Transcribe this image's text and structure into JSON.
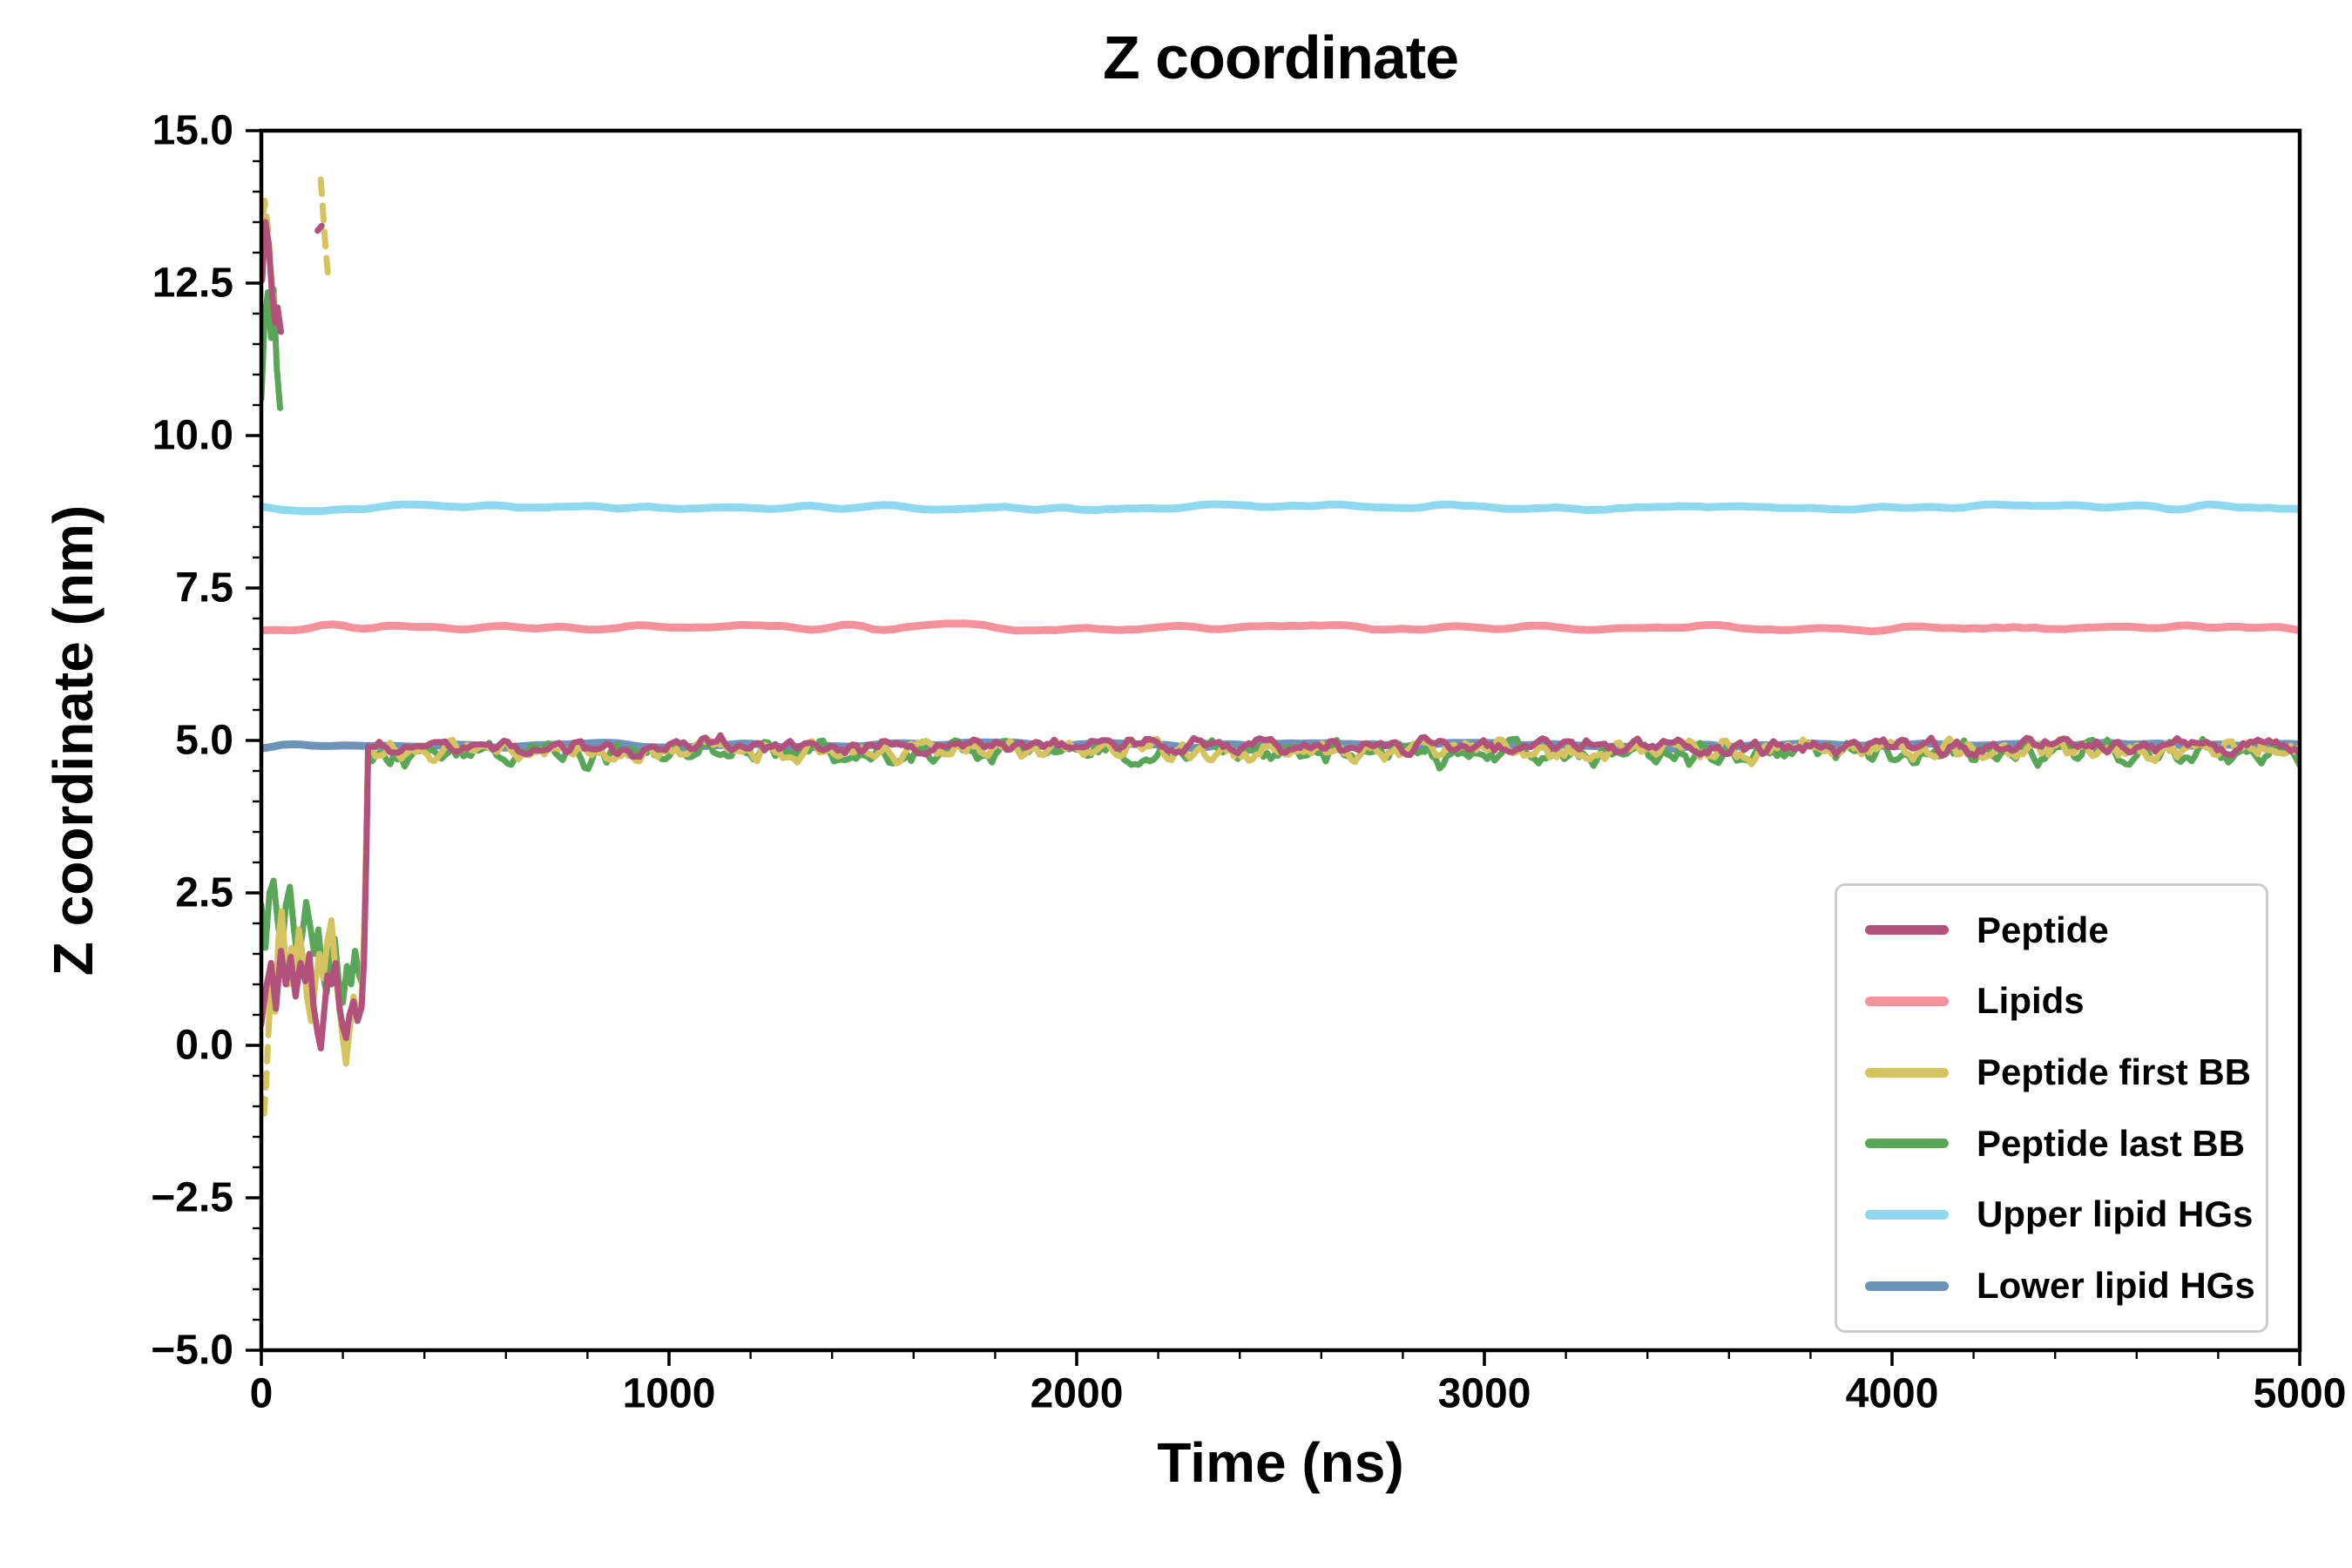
{
  "figure": {
    "background": "#ffffff"
  },
  "chart_data": {
    "type": "line",
    "title": "Z coordinate",
    "xlabel": "Time (ns)",
    "ylabel": "Z coordinate (nm)",
    "xlim": [
      0,
      5000
    ],
    "ylim": [
      -5.0,
      15.0
    ],
    "xticks": [
      0,
      1000,
      2000,
      3000,
      4000,
      5000
    ],
    "xtick_labels": [
      "0",
      "1000",
      "2000",
      "3000",
      "4000",
      "5000"
    ],
    "yticks": [
      -5.0,
      -2.5,
      0.0,
      2.5,
      5.0,
      7.5,
      10.0,
      12.5,
      15.0
    ],
    "ytick_labels": [
      "−5.0",
      "−2.5",
      "0.0",
      "2.5",
      "5.0",
      "7.5",
      "10.0",
      "12.5",
      "15.0"
    ],
    "xminor_step": 200,
    "yminor_step": 0.5,
    "grid": false,
    "legend": {
      "position": "lower right",
      "entries": [
        {
          "label": "Peptide",
          "color": "#b1517c"
        },
        {
          "label": "Lipids",
          "color": "#f4919b"
        },
        {
          "label": "Peptide first BB",
          "color": "#d4c35e"
        },
        {
          "label": "Peptide last BB",
          "color": "#59a659"
        },
        {
          "label": "Upper lipid HGs",
          "color": "#8ed8f0"
        },
        {
          "label": "Lower lipid HGs",
          "color": "#6e93b9"
        }
      ]
    },
    "series": [
      {
        "name": "Lower lipid HGs",
        "color": "#6e93b9",
        "linewidth": 9,
        "segments": [
          {
            "type": "flat",
            "style": "solid",
            "x0": 0,
            "x1": 5000,
            "y": 4.92,
            "noise": 0.04,
            "step": 25,
            "smooth": 2
          }
        ]
      },
      {
        "name": "Upper lipid HGs",
        "color": "#8ed8f0",
        "linewidth": 9,
        "segments": [
          {
            "type": "flat",
            "style": "solid",
            "x0": 0,
            "x1": 5000,
            "y": 8.82,
            "noise": 0.05,
            "step": 25,
            "smooth": 2
          }
        ]
      },
      {
        "name": "Lipids",
        "color": "#f4919b",
        "linewidth": 9,
        "segments": [
          {
            "type": "flat",
            "style": "solid",
            "x0": 0,
            "x1": 5000,
            "y": 6.85,
            "noise": 0.05,
            "step": 25,
            "smooth": 2
          }
        ]
      },
      {
        "name": "Peptide last BB",
        "color": "#59a659",
        "linewidth": 7,
        "segments": [
          {
            "type": "points",
            "style": "solid",
            "points": [
              [
                0,
                10.6
              ],
              [
                8,
                11.9
              ],
              [
                16,
                12.35
              ],
              [
                24,
                11.6
              ],
              [
                30,
                12.4
              ],
              [
                38,
                11.1
              ],
              [
                46,
                10.45
              ]
            ]
          },
          {
            "type": "points",
            "style": "solid",
            "points": [
              [
                0,
                2.3
              ],
              [
                10,
                1.6
              ],
              [
                20,
                2.5
              ],
              [
                30,
                2.7
              ],
              [
                40,
                2.05
              ],
              [
                50,
                1.5
              ],
              [
                60,
                2.3
              ],
              [
                70,
                2.6
              ],
              [
                80,
                1.9
              ],
              [
                90,
                1.35
              ],
              [
                100,
                1.8
              ],
              [
                110,
                2.35
              ],
              [
                120,
                1.95
              ],
              [
                130,
                1.5
              ],
              [
                140,
                1.9
              ],
              [
                150,
                1.2
              ],
              [
                160,
                0.85
              ],
              [
                170,
                1.4
              ],
              [
                180,
                1.75
              ],
              [
                190,
                1.05
              ],
              [
                200,
                0.7
              ],
              [
                210,
                1.3
              ],
              [
                220,
                1.0
              ],
              [
                230,
                1.55
              ],
              [
                240,
                1.15
              ],
              [
                248,
                1.0
              ],
              [
                254,
                2.2
              ],
              [
                259,
                3.8
              ],
              [
                262,
                4.9
              ]
            ]
          },
          {
            "type": "flat",
            "style": "solid",
            "x0": 262,
            "x1": 5000,
            "y": 4.8,
            "noise": 0.16,
            "step": 9,
            "smooth": 1
          }
        ]
      },
      {
        "name": "Peptide first BB",
        "color": "#d4c35e",
        "linewidth": 7,
        "segments": [
          {
            "type": "points",
            "style": "dashed",
            "points": [
              [
                0,
                13.25
              ],
              [
                8,
                13.85
              ],
              [
                16,
                13.4
              ],
              [
                24,
                12.65
              ],
              [
                30,
                12.2
              ]
            ]
          },
          {
            "type": "points",
            "style": "dashed",
            "points": [
              [
                146,
                14.2
              ],
              [
                152,
                13.6
              ],
              [
                158,
                13.05
              ],
              [
                164,
                12.6
              ]
            ]
          },
          {
            "type": "points",
            "style": "dashed",
            "points": [
              [
                0,
                -0.85
              ],
              [
                6,
                -1.2
              ],
              [
                12,
                -0.6
              ],
              [
                18,
                0.3
              ]
            ]
          },
          {
            "type": "points",
            "style": "solid",
            "points": [
              [
                18,
                0.3
              ],
              [
                26,
                1.1
              ],
              [
                34,
                0.55
              ],
              [
                42,
                1.75
              ],
              [
                50,
                2.2
              ],
              [
                58,
                1.5
              ],
              [
                66,
                1.0
              ],
              [
                74,
                1.6
              ],
              [
                82,
                1.15
              ],
              [
                92,
                1.9
              ],
              [
                102,
                1.45
              ],
              [
                112,
                0.8
              ],
              [
                122,
                0.4
              ],
              [
                132,
                1.0
              ],
              [
                142,
                1.5
              ],
              [
                152,
                1.1
              ],
              [
                162,
                1.7
              ],
              [
                172,
                2.05
              ],
              [
                182,
                1.2
              ],
              [
                192,
                0.55
              ],
              [
                200,
                0.1
              ],
              [
                208,
                -0.3
              ],
              [
                216,
                0.25
              ],
              [
                226,
                0.8
              ],
              [
                236,
                0.5
              ],
              [
                246,
                0.7
              ],
              [
                252,
                1.8
              ],
              [
                258,
                3.6
              ],
              [
                262,
                4.85
              ]
            ]
          },
          {
            "type": "flat",
            "style": "solid",
            "x0": 262,
            "x1": 5000,
            "y": 4.84,
            "noise": 0.14,
            "step": 9,
            "smooth": 1
          }
        ]
      },
      {
        "name": "Peptide",
        "color": "#b1517c",
        "linewidth": 7,
        "segments": [
          {
            "type": "points",
            "style": "solid",
            "points": [
              [
                2,
                12.55
              ],
              [
                10,
                13.5
              ],
              [
                18,
                13.15
              ],
              [
                26,
                12.35
              ],
              [
                34,
                11.85
              ],
              [
                40,
                12.1
              ],
              [
                48,
                11.7
              ]
            ]
          },
          {
            "type": "points",
            "style": "dashed",
            "points": [
              [
                138,
                13.36
              ],
              [
                148,
                13.44
              ]
            ]
          },
          {
            "type": "points",
            "style": "solid",
            "points": [
              [
                0,
                0.35
              ],
              [
                12,
                0.95
              ],
              [
                24,
                1.35
              ],
              [
                36,
                0.6
              ],
              [
                48,
                1.55
              ],
              [
                60,
                1.0
              ],
              [
                72,
                1.45
              ],
              [
                84,
                0.8
              ],
              [
                96,
                1.35
              ],
              [
                108,
                1.05
              ],
              [
                118,
                1.5
              ],
              [
                128,
                0.65
              ],
              [
                138,
                0.2
              ],
              [
                146,
                -0.05
              ],
              [
                154,
                0.55
              ],
              [
                162,
                1.15
              ],
              [
                172,
                1.0
              ],
              [
                182,
                1.35
              ],
              [
                192,
                0.6
              ],
              [
                200,
                0.3
              ],
              [
                208,
                0.12
              ],
              [
                216,
                0.5
              ],
              [
                226,
                0.72
              ],
              [
                236,
                0.4
              ],
              [
                246,
                0.62
              ],
              [
                252,
                1.4
              ],
              [
                258,
                3.2
              ],
              [
                262,
                4.9
              ]
            ]
          },
          {
            "type": "flat",
            "style": "solid",
            "x0": 262,
            "x1": 5000,
            "y": 4.9,
            "noise": 0.11,
            "step": 9,
            "smooth": 1
          }
        ]
      }
    ]
  }
}
